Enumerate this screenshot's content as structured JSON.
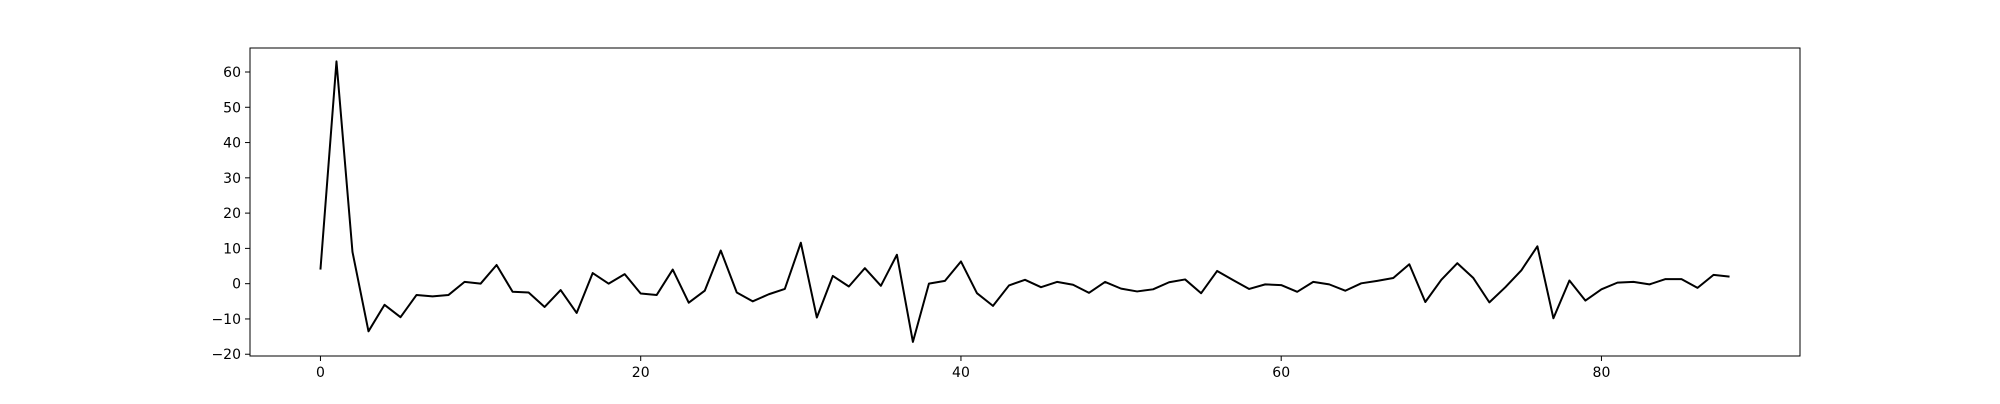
{
  "chart_data": {
    "type": "line",
    "title": "",
    "xlabel": "",
    "ylabel": "",
    "xlim": [
      -4.4,
      92.4
    ],
    "ylim": [
      -20.5,
      66.8
    ],
    "x_ticks": [
      0,
      20,
      40,
      60,
      80
    ],
    "y_ticks": [
      -20,
      -10,
      0,
      10,
      20,
      30,
      40,
      50,
      60
    ],
    "grid": false,
    "legend": "none",
    "line_color": "#000000",
    "series": [
      {
        "x": [
          0,
          1,
          2,
          3,
          4,
          5,
          6,
          7,
          8,
          9,
          10,
          11,
          12,
          13,
          14,
          15,
          16,
          17,
          18,
          19,
          20,
          21,
          22,
          23,
          24,
          25,
          26,
          27,
          28,
          29,
          30,
          31,
          32,
          33,
          34,
          35,
          36,
          37,
          38,
          39,
          40,
          41,
          42,
          43,
          44,
          45,
          46,
          47,
          48,
          49,
          50,
          51,
          52,
          53,
          54,
          55,
          56,
          57,
          58,
          59,
          60,
          61,
          62,
          63,
          64,
          65,
          66,
          67,
          68,
          69,
          70,
          71,
          72,
          73,
          74,
          75,
          76,
          77,
          78,
          79,
          80,
          81,
          82,
          83,
          84,
          85,
          86,
          87,
          88
        ],
        "values": [
          4,
          63,
          9,
          -13.5,
          -6,
          -9.5,
          -3.2,
          -3.6,
          -3.2,
          0.5,
          0,
          5.3,
          -2.3,
          -2.5,
          -6.6,
          -1.8,
          -8.3,
          3,
          0,
          2.7,
          -2.8,
          -3.2,
          4,
          -5.4,
          -2,
          9.4,
          -2.5,
          -5,
          -3,
          -1.5,
          11.6,
          -9.6,
          2.2,
          -0.8,
          4.4,
          -0.6,
          8.2,
          -16.5,
          0,
          0.8,
          6.3,
          -2.7,
          -6.3,
          -0.5,
          1.1,
          -1,
          0.5,
          -0.3,
          -2.6,
          0.5,
          -1.4,
          -2.2,
          -1.6,
          0.4,
          1.2,
          -2.7,
          3.6,
          1,
          -1.5,
          -0.2,
          -0.4,
          -2.3,
          0.5,
          -0.2,
          -2,
          0.1,
          0.8,
          1.6,
          5.5,
          -5.2,
          1.1,
          5.8,
          1.6,
          -5.3,
          -1,
          3.8,
          10.6,
          -9.8,
          0.9,
          -4.8,
          -1.6,
          0.3,
          0.5,
          -0.2,
          1.3,
          1.3,
          -1.2,
          2.5,
          2
        ]
      }
    ]
  }
}
